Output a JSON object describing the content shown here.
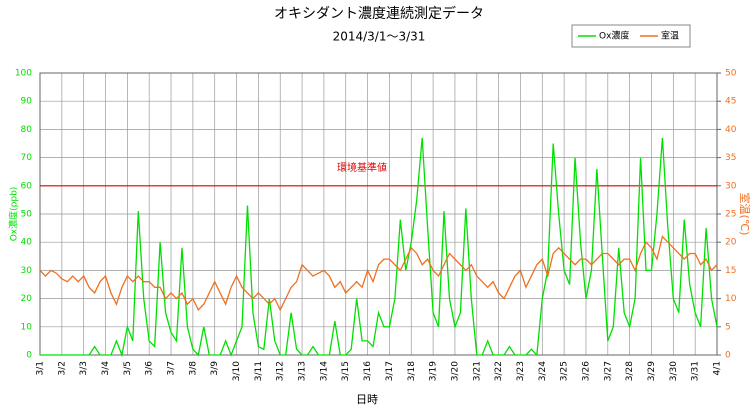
{
  "chart_data": {
    "type": "line",
    "title": "オキシダント濃度連続測定データ",
    "subtitle": "2014/3/1～3/31",
    "xlabel": "日時",
    "ylabel": "Ox濃度(ppb)",
    "y2label": "室温(℃)",
    "categories": [
      "3/1",
      null,
      null,
      null,
      "3/2",
      null,
      null,
      null,
      "3/3",
      null,
      null,
      null,
      "3/4",
      null,
      null,
      null,
      "3/5",
      null,
      null,
      null,
      "3/6",
      null,
      null,
      null,
      "3/7",
      null,
      null,
      null,
      "3/8",
      null,
      null,
      null,
      "3/9",
      null,
      null,
      null,
      "3/10",
      null,
      null,
      null,
      "3/11",
      null,
      null,
      null,
      "3/12",
      null,
      null,
      null,
      "3/13",
      null,
      null,
      null,
      "3/14",
      null,
      null,
      null,
      "3/15",
      null,
      null,
      null,
      "3/16",
      null,
      null,
      null,
      "3/17",
      null,
      null,
      null,
      "3/18",
      null,
      null,
      null,
      "3/19",
      null,
      null,
      null,
      "3/20",
      null,
      null,
      null,
      "3/21",
      null,
      null,
      null,
      "3/22",
      null,
      null,
      null,
      "3/23",
      null,
      null,
      null,
      "3/24",
      null,
      null,
      null,
      "3/25",
      null,
      null,
      null,
      "3/26",
      null,
      null,
      null,
      "3/27",
      null,
      null,
      null,
      "3/28",
      null,
      null,
      null,
      "3/29",
      null,
      null,
      null,
      "3/30",
      null,
      null,
      null,
      "3/31",
      null,
      null,
      null,
      "4/1"
    ],
    "series": [
      {
        "name": "Ox濃度",
        "color": "#00e000",
        "axis": "y",
        "values": [
          0,
          0,
          0,
          0,
          0,
          0,
          0,
          0,
          0,
          0,
          3,
          0,
          0,
          0,
          5,
          0,
          10,
          5,
          51,
          20,
          5,
          3,
          40,
          15,
          8,
          5,
          38,
          10,
          2,
          0,
          10,
          0,
          0,
          0,
          5,
          0,
          5,
          10,
          53,
          15,
          3,
          2,
          20,
          5,
          0,
          0,
          15,
          2,
          0,
          0,
          3,
          0,
          0,
          0,
          12,
          0,
          0,
          2,
          20,
          5,
          5,
          3,
          15,
          10,
          10,
          20,
          48,
          30,
          40,
          55,
          77,
          45,
          15,
          10,
          51,
          20,
          10,
          15,
          52,
          20,
          0,
          0,
          5,
          0,
          0,
          0,
          3,
          0,
          0,
          0,
          2,
          0,
          20,
          30,
          75,
          50,
          30,
          25,
          70,
          40,
          20,
          30,
          66,
          35,
          5,
          10,
          38,
          15,
          10,
          20,
          70,
          30,
          30,
          50,
          77,
          45,
          20,
          15,
          48,
          25,
          15,
          10,
          45,
          20,
          10
        ]
      },
      {
        "name": "室温",
        "color": "#f07020",
        "axis": "y2",
        "values": [
          15,
          14,
          15,
          14.5,
          13.5,
          13,
          14,
          13,
          14,
          12,
          11,
          13,
          14,
          11,
          9,
          12,
          14,
          13,
          14,
          13,
          13,
          12,
          12,
          10,
          11,
          10,
          11,
          9,
          10,
          8,
          9,
          11,
          13,
          11,
          9,
          12,
          14,
          12,
          11,
          10,
          11,
          10,
          9,
          10,
          8,
          10,
          12,
          13,
          16,
          15,
          14,
          14.5,
          15,
          14,
          12,
          13,
          11,
          12,
          13,
          12,
          15,
          13,
          16,
          17,
          17,
          16,
          15,
          17,
          19,
          18,
          16,
          17,
          15,
          14,
          16,
          18,
          17,
          16,
          15,
          16,
          14,
          13,
          12,
          13,
          11,
          10,
          12,
          14,
          15,
          12,
          14,
          16,
          17,
          14,
          18,
          19,
          18,
          17,
          16,
          17,
          17,
          16,
          17,
          18,
          18,
          17,
          16,
          17,
          17,
          15,
          18,
          20,
          19,
          17,
          21,
          20,
          19,
          18,
          17,
          18,
          18,
          16,
          17,
          15,
          16
        ]
      }
    ],
    "reference": {
      "value": 60,
      "label": "環境基準値",
      "color": "#e00000"
    },
    "ylim": [
      0,
      100
    ],
    "yticks": [
      0,
      10,
      20,
      30,
      40,
      50,
      60,
      70,
      80,
      90,
      100
    ],
    "y2lim": [
      0,
      50
    ],
    "y2ticks": [
      0,
      5,
      10,
      15,
      20,
      25,
      30,
      35,
      40,
      45,
      50
    ],
    "grid": true
  }
}
